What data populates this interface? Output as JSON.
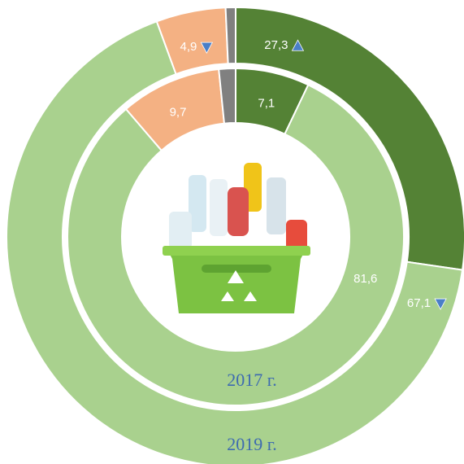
{
  "chart_data": {
    "type": "donut",
    "colors": [
      "#548235",
      "#a9d18e",
      "#f4b183",
      "#808080"
    ],
    "series": [
      {
        "name": "2017 г.",
        "values": [
          7.1,
          81.6,
          9.7,
          1.6
        ],
        "value_labels": [
          "7,1",
          "81,6",
          "9,7",
          null
        ]
      },
      {
        "name": "2019 г.",
        "values": [
          27.3,
          67.1,
          4.9,
          0.7
        ],
        "value_labels": [
          "27,3",
          "67,1",
          "4,9",
          null
        ]
      }
    ]
  }
}
